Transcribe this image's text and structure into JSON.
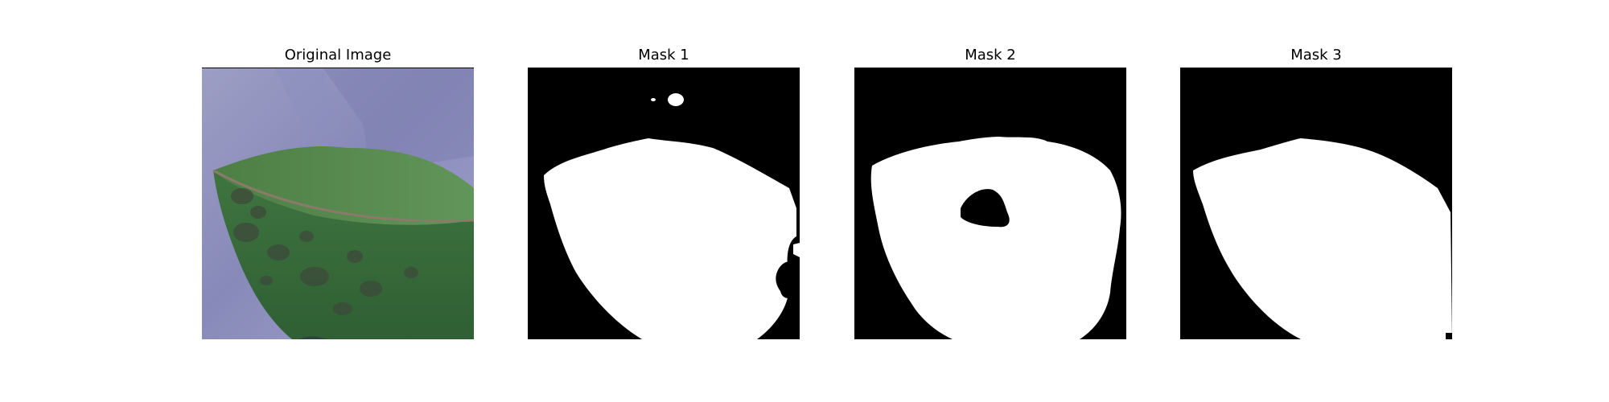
{
  "figure": {
    "panels": [
      {
        "title": "Original Image"
      },
      {
        "title": "Mask 1"
      },
      {
        "title": "Mask 2"
      },
      {
        "title": "Mask 3"
      }
    ]
  }
}
